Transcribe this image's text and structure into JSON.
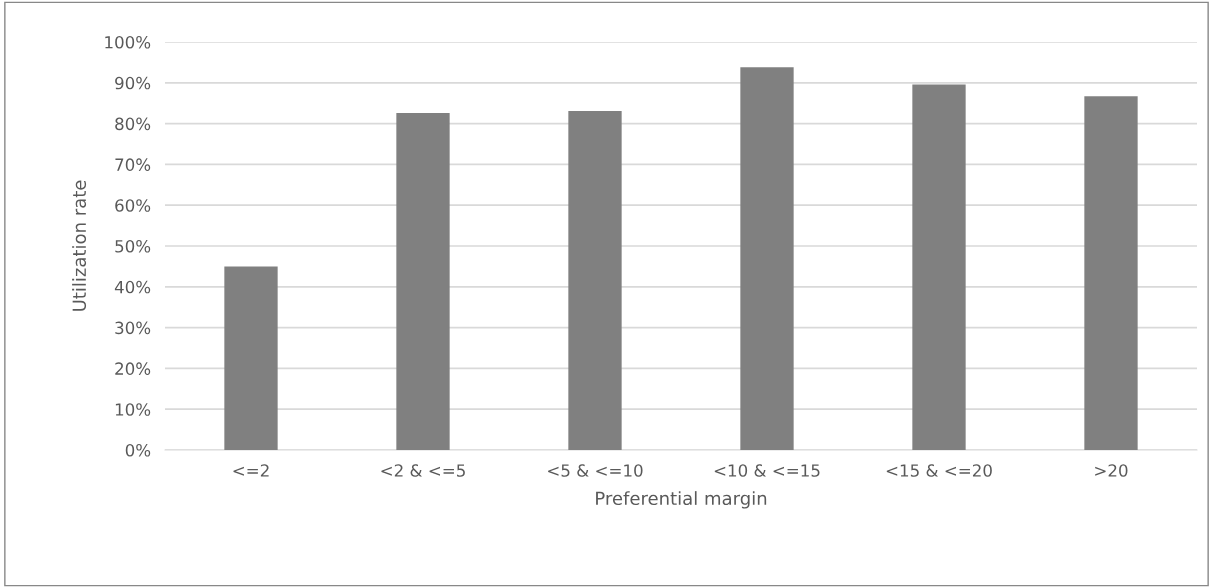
{
  "chart_data": {
    "type": "bar",
    "xlabel": "Preferential margin",
    "ylabel": "Utilization rate",
    "categories": [
      "<=2",
      "<2 & <=5",
      "<5 & <=10",
      "<10 & <=15",
      "<15 & <=20",
      ">20"
    ],
    "values": [
      45,
      82.6,
      83.1,
      93.8,
      89.6,
      86.7
    ],
    "color": "#808080",
    "ylim": [
      0,
      100
    ],
    "yticks": [
      {
        "value": 0,
        "label": "0%"
      },
      {
        "value": 10,
        "label": "10%"
      },
      {
        "value": 20,
        "label": "20%"
      },
      {
        "value": 30,
        "label": "30%"
      },
      {
        "value": 40,
        "label": "40%"
      },
      {
        "value": 50,
        "label": "50%"
      },
      {
        "value": 60,
        "label": "60%"
      },
      {
        "value": 70,
        "label": "70%"
      },
      {
        "value": 80,
        "label": "80%"
      },
      {
        "value": 90,
        "label": "90%"
      },
      {
        "value": 100,
        "label": "100%"
      }
    ],
    "grid": "y"
  }
}
